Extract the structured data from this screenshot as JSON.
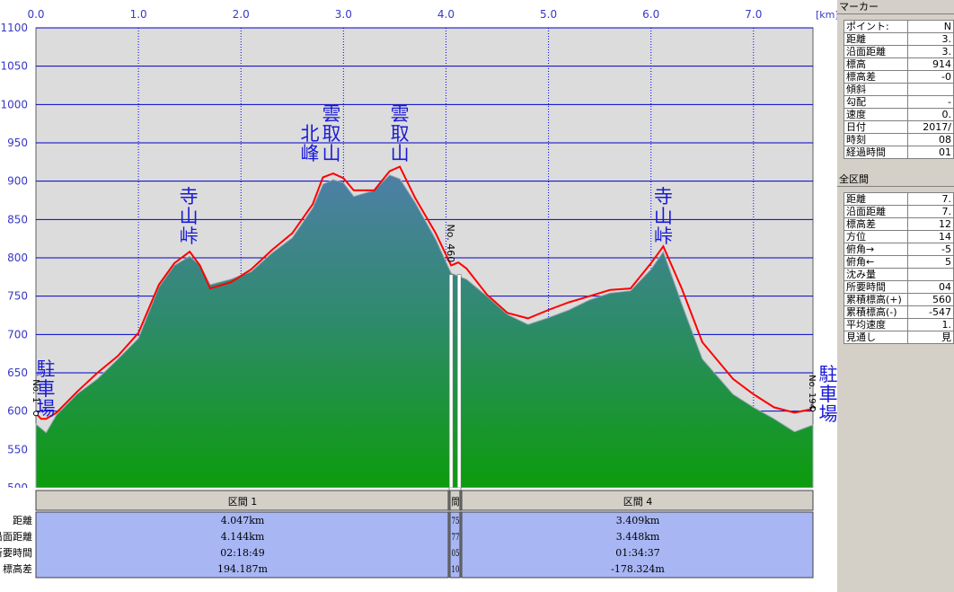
{
  "chart_data": {
    "type": "area",
    "x_unit": "[km]",
    "xlim": [
      0,
      7.58
    ],
    "ylim": [
      500,
      1100
    ],
    "x_ticks": [
      "0.0",
      "1.0",
      "2.0",
      "3.0",
      "4.0",
      "5.0",
      "6.0",
      "7.0"
    ],
    "y_ticks": [
      "1100",
      "1050",
      "1000",
      "950",
      "900",
      "850",
      "800",
      "750",
      "700",
      "650",
      "600",
      "550",
      "500"
    ],
    "grid": true,
    "terrain_profile": {
      "x": [
        0,
        0.1,
        0.2,
        0.4,
        0.6,
        0.8,
        1.0,
        1.2,
        1.35,
        1.5,
        1.6,
        1.7,
        1.9,
        2.1,
        2.3,
        2.5,
        2.7,
        2.8,
        2.9,
        3.0,
        3.1,
        3.3,
        3.45,
        3.55,
        3.7,
        3.9,
        4.05,
        4.2,
        4.4,
        4.6,
        4.8,
        5.0,
        5.2,
        5.4,
        5.6,
        5.8,
        6.0,
        6.12,
        6.3,
        6.5,
        6.8,
        7.0,
        7.2,
        7.4,
        7.58
      ],
      "y": [
        583,
        572,
        595,
        622,
        642,
        668,
        695,
        762,
        790,
        802,
        790,
        765,
        772,
        782,
        806,
        826,
        865,
        896,
        902,
        898,
        880,
        888,
        908,
        903,
        872,
        824,
        780,
        772,
        750,
        726,
        713,
        722,
        732,
        745,
        754,
        757,
        785,
        808,
        740,
        668,
        622,
        605,
        590,
        573,
        582
      ]
    },
    "track": {
      "x": [
        0,
        0.05,
        0.1,
        0.2,
        0.4,
        0.6,
        0.8,
        1.0,
        1.2,
        1.35,
        1.5,
        1.6,
        1.7,
        1.9,
        2.1,
        2.3,
        2.5,
        2.7,
        2.8,
        2.9,
        3.0,
        3.1,
        3.3,
        3.45,
        3.55,
        3.7,
        3.9,
        4.05,
        4.12,
        4.2,
        4.4,
        4.6,
        4.8,
        5.0,
        5.2,
        5.4,
        5.6,
        5.8,
        6.0,
        6.12,
        6.3,
        6.5,
        6.8,
        7.0,
        7.2,
        7.4,
        7.58
      ],
      "y": [
        597,
        590,
        590,
        598,
        625,
        650,
        672,
        702,
        765,
        793,
        808,
        790,
        760,
        768,
        785,
        810,
        832,
        870,
        905,
        910,
        904,
        888,
        888,
        913,
        919,
        878,
        832,
        790,
        794,
        786,
        752,
        728,
        721,
        732,
        742,
        750,
        758,
        760,
        793,
        815,
        760,
        690,
        642,
        622,
        605,
        598,
        603
      ]
    },
    "peaks": [
      {
        "label": "寺山峠",
        "x": 1.5,
        "y": 808
      },
      {
        "label": "雲取山北峰",
        "x": 2.9,
        "y": 910
      },
      {
        "label": "雲取山",
        "x": 3.55,
        "y": 919
      },
      {
        "label": "寺山峠",
        "x": 6.12,
        "y": 815
      }
    ],
    "endpoints": [
      {
        "label": "駐車場",
        "point": "No. 1",
        "x": 0,
        "y": 597
      },
      {
        "label": "駐車場",
        "point": "No. 194",
        "x": 7.58,
        "y": 603
      }
    ],
    "marker": {
      "label": "No. 460",
      "x": 4.05,
      "y": 790
    }
  },
  "segments": {
    "row_labels": [
      "距離",
      "沿面距離",
      "所要時間",
      "標高差"
    ],
    "left_clip_labels": [
      "距離",
      "沿面距離",
      "所要時間",
      "標高差"
    ],
    "list": [
      {
        "title": "区間 1",
        "values": [
          "4.047km",
          "4.144km",
          "02:18:49",
          "194.187m"
        ]
      },
      {
        "title": "間",
        "values": [
          "75",
          "77",
          "05",
          "10"
        ]
      },
      {
        "title": "区間 4",
        "values": [
          "3.409km",
          "3.448km",
          "01:34:37",
          "-178.324m"
        ]
      }
    ]
  },
  "sidepanel": {
    "marker_header": "マーカー",
    "marker_rows": [
      {
        "label": "ポイント:",
        "value": "N"
      },
      {
        "label": "距離",
        "value": "3."
      },
      {
        "label": "沿面距離",
        "value": "3."
      },
      {
        "label": "標高",
        "value": "914"
      },
      {
        "label": "標高差",
        "value": "-0"
      },
      {
        "label": "傾斜",
        "value": ""
      },
      {
        "label": "勾配",
        "value": "-"
      },
      {
        "label": "速度",
        "value": "0."
      },
      {
        "label": "日付",
        "value": "2017/"
      },
      {
        "label": "時刻",
        "value": "08"
      },
      {
        "label": "経過時間",
        "value": "01"
      }
    ],
    "summary_header": "全区間",
    "summary_rows": [
      {
        "label": "距離",
        "value": "7."
      },
      {
        "label": "沿面距離",
        "value": "7."
      },
      {
        "label": "標高差",
        "value": "12"
      },
      {
        "label": "方位",
        "value": "14"
      },
      {
        "label": "俯角→",
        "value": "-5"
      },
      {
        "label": "俯角←",
        "value": "5"
      },
      {
        "label": "沈み量",
        "value": ""
      },
      {
        "label": "所要時間",
        "value": "04"
      },
      {
        "label": "累積標高(+)",
        "value": "560"
      },
      {
        "label": "累積標高(-)",
        "value": "-547"
      },
      {
        "label": "平均速度",
        "value": "1."
      },
      {
        "label": "見通し",
        "value": "見"
      }
    ]
  },
  "colors": {
    "plot_bg": "#dcdcdc",
    "grid_v": "#0000ff",
    "grid_h": "#0000c8",
    "terrain_top": "#4d7fa6",
    "terrain_bottom": "#0c9c0c",
    "track": "#ff0000",
    "label_blue": "#1a1ad6",
    "axis_text": "#3838c8",
    "segment_bg": "#a8b6f4"
  }
}
